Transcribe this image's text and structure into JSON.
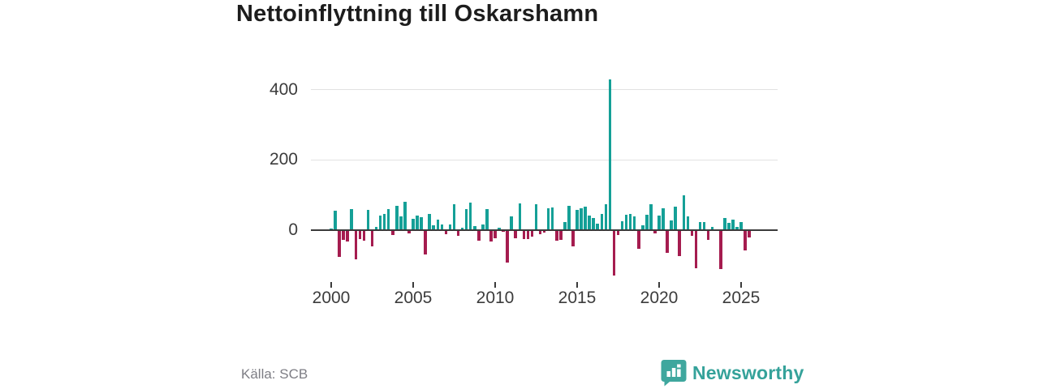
{
  "title": "Nettoinflyttning till Oskarshamn",
  "source_label": "Källa: SCB",
  "brand": {
    "name": "Newsworthy",
    "logo_icon": "speech-bubble-bar-chart-icon",
    "color": "#35a29a"
  },
  "colors": {
    "positive_bar": "#15a097",
    "negative_bar": "#a51c4f",
    "gridline": "#e2e2e2",
    "axis_line": "#3b3b3b",
    "axis_text": "#3c3c3c",
    "title_text": "#1d1d1d",
    "source_text": "#7d7d84"
  },
  "chart_data": {
    "type": "bar",
    "title": "Nettoinflyttning till Oskarshamn",
    "xlabel": "",
    "ylabel": "",
    "frequency": "quarterly",
    "start_period": "2000-Q1",
    "end_period": "2025-Q3",
    "x_tick_years": [
      2000,
      2005,
      2010,
      2015,
      2020,
      2025
    ],
    "x_tick_labels": [
      "2000",
      "2005",
      "2010",
      "2015",
      "2020",
      "2025"
    ],
    "y_tick_values": [
      0,
      200,
      400
    ],
    "y_tick_labels": [
      "0",
      "200",
      "400"
    ],
    "ylim": [
      -150,
      460
    ],
    "grid": "horizontal-only",
    "legend": "none",
    "positive_color_meaning": "net in-migration",
    "negative_color_meaning": "net out-migration",
    "values": [
      4,
      54,
      -78,
      -28,
      -34,
      58,
      -85,
      -26,
      -31,
      56,
      -48,
      8,
      41,
      46,
      60,
      -15,
      68,
      38,
      79,
      -11,
      31,
      41,
      37,
      -71,
      45,
      12,
      29,
      15,
      -13,
      15,
      74,
      -18,
      6,
      60,
      77,
      10,
      -32,
      14,
      58,
      -34,
      -25,
      6,
      -5,
      -93,
      39,
      -25,
      75,
      -27,
      -26,
      -19,
      72,
      -13,
      -9,
      62,
      64,
      -31,
      -28,
      22,
      69,
      -48,
      56,
      62,
      66,
      41,
      33,
      18,
      45,
      74,
      430,
      -130,
      -16,
      25,
      42,
      45,
      38,
      -54,
      12,
      42,
      72,
      -11,
      41,
      62,
      -67,
      26,
      67,
      -75,
      99,
      39,
      -17,
      -110,
      23,
      23,
      -28,
      8,
      2,
      -111,
      33,
      20,
      28,
      9,
      22,
      -60,
      -22
    ]
  }
}
